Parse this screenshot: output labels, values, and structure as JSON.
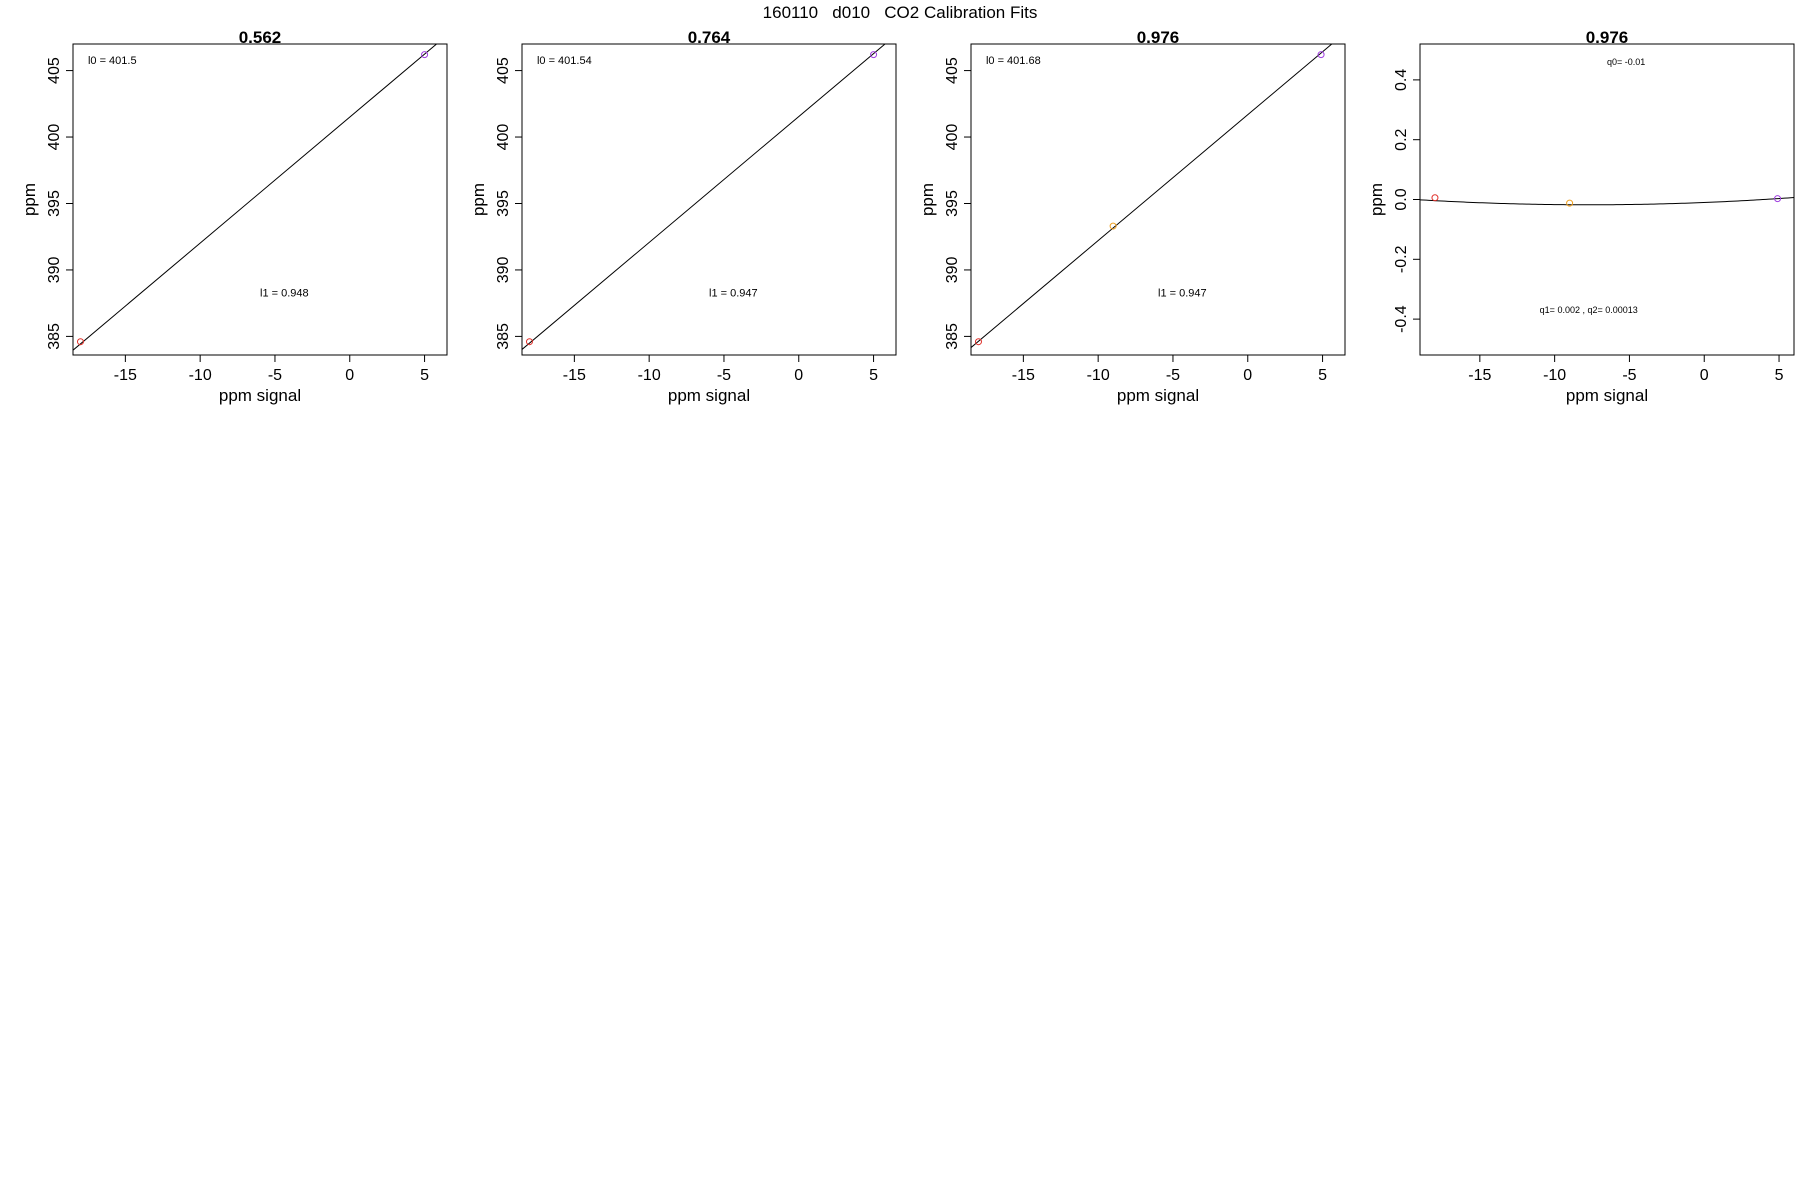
{
  "figure": {
    "title": "160110   d010   CO2 Calibration Fits"
  },
  "chart_data": [
    {
      "type": "scatter",
      "title": "0.562",
      "xlabel": "ppm signal",
      "ylabel": "ppm",
      "xlim": [
        -18.5,
        6.5
      ],
      "ylim": [
        383.6,
        407.0
      ],
      "x_ticks": [
        -15,
        -10,
        -5,
        0,
        5
      ],
      "y_ticks": [
        385,
        390,
        395,
        400,
        405
      ],
      "series": [
        {
          "points": [
            {
              "x": -18.0,
              "y": 384.6,
              "color": "#e0302a"
            },
            {
              "x": 5.0,
              "y": 406.2,
              "color": "#a040e0"
            }
          ]
        }
      ],
      "fit_line": {
        "intercept": 401.5,
        "slope": 0.948
      },
      "annotations": [
        {
          "text": "l0 =  401.5",
          "x": -17.5,
          "y": 405.5
        },
        {
          "text": "l1 =  0.948",
          "x": -6.0,
          "y": 388.0
        }
      ],
      "grid": false
    },
    {
      "type": "scatter",
      "title": "0.764",
      "xlabel": "ppm signal",
      "ylabel": "ppm",
      "xlim": [
        -18.5,
        6.5
      ],
      "ylim": [
        383.6,
        407.0
      ],
      "x_ticks": [
        -15,
        -10,
        -5,
        0,
        5
      ],
      "y_ticks": [
        385,
        390,
        395,
        400,
        405
      ],
      "series": [
        {
          "points": [
            {
              "x": -18.0,
              "y": 384.6,
              "color": "#e0302a"
            },
            {
              "x": 5.0,
              "y": 406.2,
              "color": "#a040e0"
            }
          ]
        }
      ],
      "fit_line": {
        "intercept": 401.54,
        "slope": 0.947
      },
      "annotations": [
        {
          "text": "l0 =  401.54",
          "x": -17.5,
          "y": 405.5
        },
        {
          "text": "l1 =  0.947",
          "x": -6.0,
          "y": 388.0
        }
      ],
      "grid": false
    },
    {
      "type": "scatter",
      "title": "0.976",
      "xlabel": "ppm signal",
      "ylabel": "ppm",
      "xlim": [
        -18.5,
        6.5
      ],
      "ylim": [
        383.6,
        407.0
      ],
      "x_ticks": [
        -15,
        -10,
        -5,
        0,
        5
      ],
      "y_ticks": [
        385,
        390,
        395,
        400,
        405
      ],
      "series": [
        {
          "points": [
            {
              "x": -18.0,
              "y": 384.6,
              "color": "#e0302a"
            },
            {
              "x": -9.0,
              "y": 393.3,
              "color": "#f0a020"
            },
            {
              "x": 4.9,
              "y": 406.2,
              "color": "#a040e0"
            }
          ]
        }
      ],
      "fit_line": {
        "intercept": 401.68,
        "slope": 0.947
      },
      "annotations": [
        {
          "text": "l0 =  401.68",
          "x": -17.5,
          "y": 405.5
        },
        {
          "text": "l1 =  0.947",
          "x": -6.0,
          "y": 388.0
        }
      ],
      "grid": false
    },
    {
      "type": "scatter",
      "title": "0.976",
      "xlabel": "ppm signal",
      "ylabel": "ppm",
      "xlim": [
        -19.0,
        6.0
      ],
      "ylim": [
        -0.52,
        0.52
      ],
      "x_ticks": [
        -15,
        -10,
        -5,
        0,
        5
      ],
      "y_ticks": [
        -0.4,
        -0.2,
        0.0,
        0.2,
        0.4
      ],
      "y_tick_labels": [
        "-0.4",
        "-0.2",
        "0.0",
        "0.2",
        "0.4"
      ],
      "series": [
        {
          "points": [
            {
              "x": -18.0,
              "y": 0.006,
              "color": "#e0302a"
            },
            {
              "x": -9.0,
              "y": -0.012,
              "color": "#f0a020"
            },
            {
              "x": 4.9,
              "y": 0.003,
              "color": "#a040e0"
            }
          ]
        }
      ],
      "fit_curve": {
        "q0": -0.01,
        "q1": 0.002,
        "q2": 0.00013
      },
      "annotations": [
        {
          "text": "q0= -0.01",
          "x": -6.5,
          "y": 0.45
        },
        {
          "text": "q1= 0.002 , q2= 0.00013",
          "x": -11.0,
          "y": -0.38
        }
      ],
      "grid": false
    }
  ]
}
